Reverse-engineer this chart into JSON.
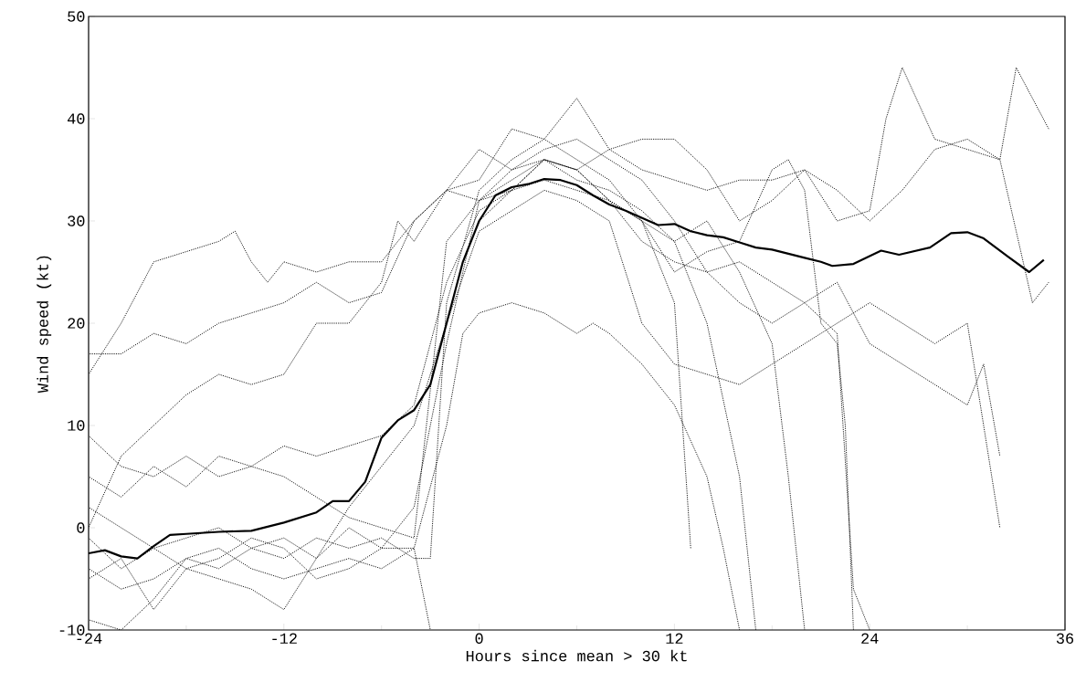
{
  "chart_data": {
    "type": "line",
    "xlabel": "Hours since mean > 30 kt",
    "ylabel": "Wind speed (kt)",
    "xlim": [
      -24,
      36
    ],
    "ylim": [
      -10,
      50
    ],
    "xticks": [
      -24,
      -12,
      0,
      12,
      24,
      36
    ],
    "yticks": [
      -10,
      0,
      10,
      20,
      30,
      40,
      50
    ],
    "grid": false,
    "series": [
      {
        "color": "#000000",
        "line_style": "dotted",
        "x": [
          -24,
          -22,
          -20,
          -18,
          -16,
          -15,
          -14,
          -13,
          -12,
          -10,
          -8,
          -6,
          -4,
          -2,
          0,
          2,
          4,
          6,
          8,
          10,
          12,
          14,
          16,
          18,
          20,
          22,
          24,
          26,
          28,
          30,
          32,
          33,
          34,
          35
        ],
        "values": [
          15,
          20,
          26,
          27,
          28,
          29,
          26,
          24,
          26,
          25,
          26,
          26,
          30,
          33,
          34,
          39,
          38,
          42,
          37,
          38,
          38,
          35,
          30,
          32,
          35,
          33,
          30,
          33,
          37,
          38,
          36,
          45,
          42,
          39
        ]
      },
      {
        "color": "#000000",
        "line_style": "dotted",
        "x": [
          -24,
          -22,
          -20,
          -18,
          -16,
          -14,
          -12,
          -10,
          -8,
          -6,
          -4,
          -2,
          0,
          2,
          4,
          6,
          8,
          10,
          12,
          14,
          16,
          18,
          20,
          22,
          24,
          25,
          26,
          28,
          30,
          32,
          34,
          35
        ],
        "values": [
          17,
          17,
          19,
          18,
          20,
          21,
          22,
          24,
          22,
          23,
          30,
          33,
          37,
          35,
          36,
          35,
          37,
          35,
          34,
          33,
          34,
          34,
          35,
          30,
          31,
          40,
          45,
          38,
          37,
          36,
          22,
          24
        ]
      },
      {
        "color": "#000000",
        "line_style": "dotted",
        "x": [
          -24,
          -22,
          -20,
          -18,
          -16,
          -14,
          -12,
          -10,
          -8,
          -6,
          -5,
          -4,
          -2,
          0,
          2,
          4,
          6,
          8,
          10,
          12,
          14,
          16,
          18,
          20,
          22,
          24,
          26,
          28,
          30,
          31,
          32
        ],
        "values": [
          0,
          7,
          10,
          13,
          15,
          14,
          15,
          20,
          20,
          24,
          30,
          28,
          33,
          32,
          35,
          37,
          38,
          36,
          34,
          30,
          25,
          22,
          20,
          22,
          24,
          18,
          16,
          14,
          12,
          16,
          7
        ]
      },
      {
        "color": "#000000",
        "line_style": "dotted",
        "x": [
          -24,
          -22,
          -20,
          -18,
          -16,
          -14,
          -12,
          -10,
          -8,
          -6,
          -4,
          -2,
          0,
          2,
          4,
          6,
          8,
          10,
          12,
          14,
          16,
          18,
          20,
          22,
          24,
          26,
          28,
          30,
          32
        ],
        "values": [
          -5,
          -3,
          -8,
          -4,
          -5,
          -6,
          -8,
          -3,
          2,
          6,
          10,
          20,
          29,
          31,
          33,
          32,
          30,
          20,
          16,
          15,
          14,
          16,
          18,
          20,
          22,
          20,
          18,
          20,
          0
        ]
      },
      {
        "color": "#000000",
        "line_style": "dotted",
        "x": [
          -24,
          -22,
          -20,
          -18,
          -16,
          -14,
          -12,
          -10,
          -8,
          -6,
          -4,
          -2,
          0,
          2,
          4,
          6,
          8,
          10,
          12,
          14,
          16,
          17
        ],
        "values": [
          5,
          3,
          6,
          4,
          7,
          6,
          8,
          7,
          8,
          9,
          12,
          24,
          31,
          33,
          36,
          34,
          33,
          31,
          28,
          20,
          5,
          -10
        ]
      },
      {
        "color": "#000000",
        "line_style": "dotted",
        "x": [
          -24,
          -22,
          -20,
          -18,
          -16,
          -14,
          -12,
          -10,
          -8,
          -6,
          -4,
          -3,
          -2,
          0,
          2,
          4,
          6,
          8,
          10,
          12,
          13
        ],
        "values": [
          -9,
          -10,
          -7,
          -3,
          -4,
          -2,
          -3,
          -1,
          -2,
          -1,
          -3,
          -3,
          22,
          33,
          36,
          38,
          36,
          34,
          30,
          22,
          -2
        ]
      },
      {
        "color": "#000000",
        "line_style": "dotted",
        "x": [
          -24,
          -22,
          -20,
          -18,
          -16,
          -14,
          -12,
          -10,
          -8,
          -6,
          -4,
          -3
        ],
        "values": [
          2,
          0,
          -2,
          -1,
          0,
          -2,
          -1,
          -3,
          0,
          -2,
          -2,
          -10
        ]
      },
      {
        "color": "#000000",
        "line_style": "dotted",
        "x": [
          -24,
          -22,
          -20,
          -18,
          -16,
          -14,
          -12,
          -10,
          -8,
          -6,
          -4,
          -2,
          -1,
          0,
          2,
          4,
          6,
          7,
          8,
          10,
          12,
          14,
          15,
          16
        ],
        "values": [
          -4,
          -6,
          -5,
          -3,
          -2,
          -4,
          -5,
          -4,
          -3,
          -4,
          -2,
          10,
          19,
          21,
          22,
          21,
          19,
          20,
          19,
          16,
          12,
          5,
          -2,
          -10
        ]
      },
      {
        "color": "#000000",
        "line_style": "dotted",
        "x": [
          -24,
          -22,
          -20,
          -18,
          -16,
          -14,
          -12,
          -10,
          -8,
          -6,
          -4,
          -2,
          0,
          2,
          4,
          6,
          8,
          10,
          12,
          14,
          16,
          18,
          20,
          22,
          23,
          24
        ],
        "values": [
          -1,
          -4,
          -2,
          -4,
          -3,
          -1,
          -2,
          -5,
          -4,
          -2,
          2,
          18,
          32,
          34,
          36,
          35,
          32,
          28,
          26,
          25,
          26,
          24,
          22,
          19,
          -6,
          -10
        ]
      },
      {
        "color": "#000000",
        "line_style": "dotted",
        "x": [
          -24,
          -22,
          -20,
          -18,
          -16,
          -14,
          -12,
          -10,
          -8,
          -6,
          -4,
          -2,
          0,
          2,
          4,
          6,
          8,
          10,
          12,
          14,
          16,
          18,
          19,
          20
        ],
        "values": [
          9,
          6,
          5,
          7,
          5,
          6,
          5,
          3,
          1,
          0,
          -1,
          28,
          32,
          33,
          34,
          33,
          32,
          30,
          28,
          30,
          25,
          18,
          5,
          -10
        ]
      },
      {
        "color": "#000000",
        "line_style": "dotted",
        "x": [
          0,
          2,
          4,
          6,
          8,
          10,
          12,
          14,
          16,
          18,
          19,
          20,
          21,
          22,
          22.5,
          23
        ],
        "values": [
          30,
          33,
          36,
          35,
          32,
          30,
          25,
          27,
          28,
          35,
          36,
          33,
          20,
          18,
          10,
          -10
        ]
      },
      {
        "color": "#000000",
        "line_style": "solid",
        "x": [
          -24,
          -23,
          -22,
          -21,
          -20,
          -19,
          -18,
          -16,
          -14,
          -12,
          -10,
          -9,
          -8,
          -7,
          -6,
          -5,
          -4,
          -3,
          -2,
          -1,
          0,
          1,
          2,
          3,
          4,
          5,
          6,
          7,
          8,
          9,
          10,
          11,
          12,
          13,
          14,
          15,
          16,
          17,
          18,
          19,
          20,
          21,
          21.7,
          23,
          24.7,
          25.8,
          27.7,
          29,
          30,
          31,
          32.5,
          33.8,
          34.7
        ],
        "values": [
          -2.5,
          -2.2,
          -2.8,
          -3.0,
          -1.8,
          -0.7,
          -0.6,
          -0.4,
          -0.3,
          0.5,
          1.5,
          2.6,
          2.6,
          4.5,
          8.8,
          10.5,
          11.5,
          14,
          20,
          26,
          30,
          32.5,
          33.3,
          33.6,
          34.1,
          34.0,
          33.5,
          32.5,
          31.6,
          31,
          30.3,
          29.6,
          29.7,
          29,
          28.6,
          28.4,
          27.9,
          27.4,
          27.2,
          26.8,
          26.4,
          26.0,
          25.6,
          25.8,
          27.1,
          26.7,
          27.4,
          28.8,
          28.9,
          28.3,
          26.5,
          25.0,
          26.2
        ]
      }
    ]
  }
}
